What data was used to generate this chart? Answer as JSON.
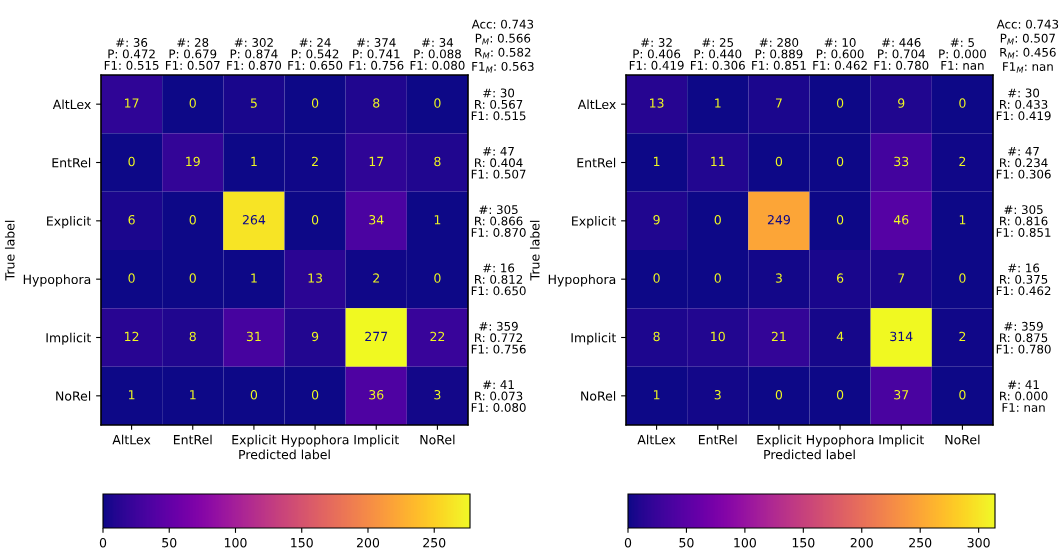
{
  "chart_data": [
    {
      "type": "heatmap",
      "xlabel": "Predicted label",
      "ylabel": "True label",
      "categories": [
        "AltLex",
        "EntRel",
        "Explicit",
        "Hypophora",
        "Implicit",
        "NoRel"
      ],
      "y_categories": [
        "AltLex",
        "EntRel",
        "Explicit",
        "Hypophora",
        "Implicit",
        "NoRel"
      ],
      "y2_categories": [
        "#: 30\nR: 0.567\nF1: 0.515",
        "#: 47\nR: 0.404\nF1: 0.507",
        "#: 305\nR: 0.866\nF1: 0.870",
        "#: 16\nR: 0.812\nF1: 0.650",
        "#: 359\nR: 0.772\nF1: 0.756",
        "#: 41\nR: 0.073\nF1: 0.080"
      ],
      "cells": [
        [
          17,
          0,
          5,
          0,
          8,
          0
        ],
        [
          0,
          19,
          1,
          2,
          17,
          8
        ],
        [
          6,
          0,
          264,
          0,
          34,
          1
        ],
        [
          0,
          0,
          1,
          13,
          2,
          0
        ],
        [
          12,
          8,
          31,
          9,
          277,
          22
        ],
        [
          1,
          1,
          0,
          0,
          36,
          3
        ]
      ],
      "data_labels": true,
      "clim": [
        0,
        277
      ],
      "cticks": [
        0,
        50,
        100,
        150,
        200,
        250
      ],
      "annotations": [
        "#: 36\nP: 0.472\nF1: 0.515",
        "#: 28\nP: 0.679\nF1: 0.507",
        "#: 302\nP: 0.874\nF1: 0.870",
        "#: 24\nP: 0.542\nF1: 0.650",
        "#: 374\nP: 0.741\nF1: 0.756",
        "#: 34\nP: 0.088\nF1: 0.080",
        "Acc: 0.743\nP$_{M}$: 0.566\nR$_{M}$: 0.582\nF1$_{M}$: 0.563"
      ]
    },
    {
      "type": "heatmap",
      "xlabel": "Predicted label",
      "ylabel": "True label",
      "categories": [
        "AltLex",
        "EntRel",
        "Explicit",
        "Hypophora",
        "Implicit",
        "NoRel"
      ],
      "y_categories": [
        "AltLex",
        "EntRel",
        "Explicit",
        "Hypophora",
        "Implicit",
        "NoRel"
      ],
      "y2_categories": [
        "#: 30\nR: 0.433\nF1: 0.419",
        "#: 47\nR: 0.234\nF1: 0.306",
        "#: 305\nR: 0.816\nF1: 0.851",
        "#: 16\nR: 0.375\nF1: 0.462",
        "#: 359\nR: 0.875\nF1: 0.780",
        "#: 41\nR: 0.000\nF1: nan"
      ],
      "cells": [
        [
          13,
          1,
          7,
          0,
          9,
          0
        ],
        [
          1,
          11,
          0,
          0,
          33,
          2
        ],
        [
          9,
          0,
          249,
          0,
          46,
          1
        ],
        [
          0,
          0,
          3,
          6,
          7,
          0
        ],
        [
          8,
          10,
          21,
          4,
          314,
          2
        ],
        [
          1,
          3,
          0,
          0,
          37,
          0
        ]
      ],
      "data_labels": true,
      "clim": [
        0,
        314
      ],
      "cticks": [
        0,
        50,
        100,
        150,
        200,
        250,
        300
      ],
      "annotations": [
        "#: 32\nP: 0.406\nF1: 0.419",
        "#: 25\nP: 0.440\nF1: 0.306",
        "#: 280\nP: 0.889\nF1: 0.851",
        "#: 10\nP: 0.600\nF1: 0.462",
        "#: 446\nP: 0.704\nF1: 0.780",
        "#: 5\nP: 0.000\nF1: nan",
        "Acc: 0.743\nP$_{M}$: 0.507\nR$_{M}$: 0.456\nF1$_{M}$: nan"
      ]
    }
  ]
}
